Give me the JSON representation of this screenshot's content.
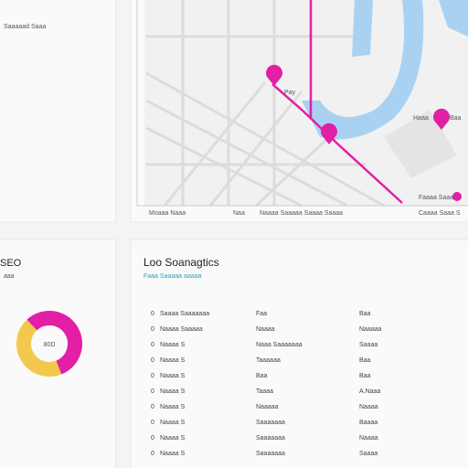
{
  "top_left": {
    "title": "Saaaaad Saaa"
  },
  "map": {
    "labels": [
      "Pay",
      "Haaa",
      "Baa",
      "Faaaa Saaa"
    ],
    "footer": [
      "Moaaa Naaa",
      "Naa",
      "Naaaa Saaaaa Saaaa Saaaa",
      "Caaaa Saaa S"
    ]
  },
  "seo": {
    "title": "SEO",
    "subtitle": "aaa",
    "donut": {
      "center": "80D",
      "values": [
        56,
        44
      ],
      "colors": [
        "#e21fa6",
        "#f2c94c"
      ]
    }
  },
  "stats": {
    "title": "Loo Soanagtics",
    "subtitle": "Faaa Saaaaa aaaaa",
    "rows": [
      [
        "0",
        "Saaaa Saaaaaaa",
        "Faa",
        "Baa"
      ],
      [
        "0",
        "Naaaa Saaaaa",
        "Naaaa",
        "Naaaaa"
      ],
      [
        "0",
        "Naaaa S",
        "Naaa Saaaaaaa",
        "Saaaa"
      ],
      [
        "0",
        "Naaaa S",
        "Taaaaaa",
        "Baa"
      ],
      [
        "0",
        "Naaaa S",
        "Baa",
        "Baa"
      ],
      [
        "0",
        "Naaaa S",
        "Taaaa",
        "A.Naaa"
      ],
      [
        "0",
        "Naaaa S",
        "Naaaaa",
        "Naaaa"
      ],
      [
        "0",
        "Naaaa S",
        "Saaaaaaa",
        "Baaaa"
      ],
      [
        "0",
        "Naaaa S",
        "Saaaaaaa",
        "Naaaa"
      ],
      [
        "0",
        "Naaaa S",
        "Saaaaaaa",
        "Saaaa"
      ]
    ]
  }
}
